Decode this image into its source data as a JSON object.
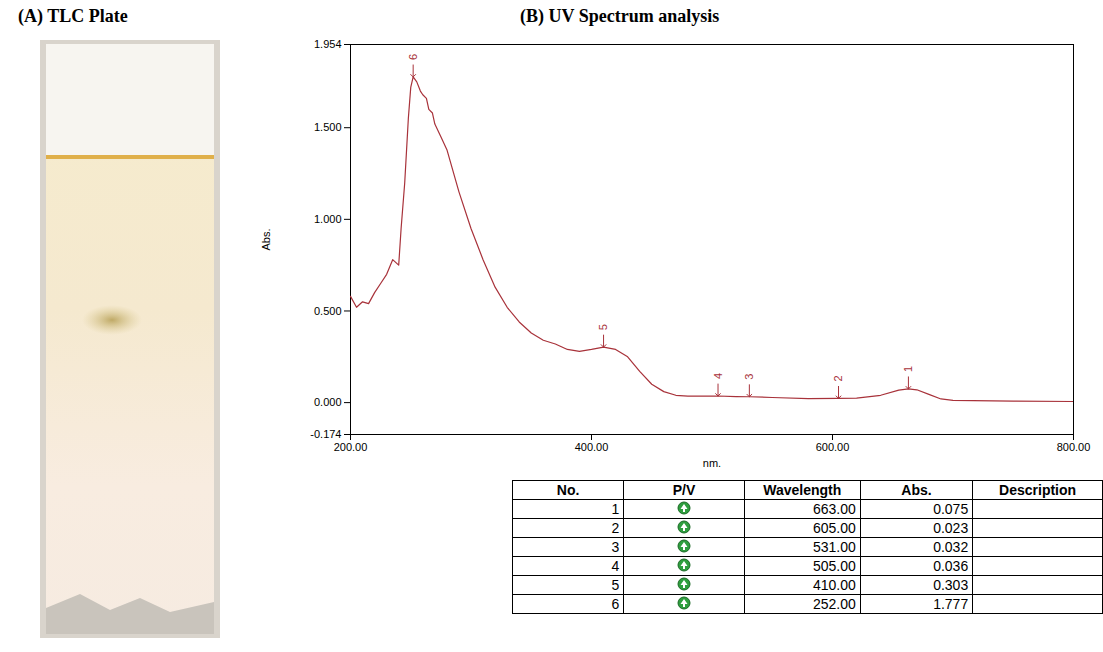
{
  "panel_a": {
    "title": "(A) TLC Plate"
  },
  "chart_data": {
    "type": "line",
    "title": "(B) UV Spectrum analysis",
    "x_label": "nm.",
    "y_label": "Abs.",
    "xlim": [
      200,
      800
    ],
    "xticks": [
      {
        "value": 200,
        "label": "200.00"
      },
      {
        "value": 400,
        "label": "400.00"
      },
      {
        "value": 600,
        "label": "600.00"
      },
      {
        "value": 800,
        "label": "800.00"
      }
    ],
    "ylim": [
      -0.174,
      1.954
    ],
    "yticks": [
      -0.174,
      {
        "value": 0,
        "label": "0.000"
      },
      {
        "value": 0.5,
        "label": "0.500"
      },
      {
        "value": 1,
        "label": "1.000"
      },
      {
        "value": 1.5,
        "label": "1.500"
      },
      1.954
    ],
    "grid": false,
    "color": "#a8323a",
    "x": [
      200,
      205,
      210,
      215,
      220,
      225,
      230,
      235,
      240,
      242,
      245,
      248,
      250,
      252,
      255,
      258,
      260,
      263,
      265,
      268,
      270,
      275,
      280,
      290,
      300,
      310,
      320,
      330,
      340,
      350,
      360,
      370,
      380,
      390,
      400,
      410,
      420,
      430,
      440,
      450,
      460,
      470,
      480,
      500,
      505,
      520,
      531,
      550,
      580,
      605,
      620,
      640,
      655,
      663,
      670,
      680,
      690,
      700,
      750,
      800
    ],
    "values": [
      0.58,
      0.52,
      0.55,
      0.54,
      0.6,
      0.65,
      0.7,
      0.78,
      0.75,
      0.95,
      1.2,
      1.55,
      1.72,
      1.777,
      1.75,
      1.7,
      1.68,
      1.66,
      1.6,
      1.58,
      1.52,
      1.45,
      1.38,
      1.15,
      0.95,
      0.78,
      0.63,
      0.52,
      0.44,
      0.38,
      0.34,
      0.32,
      0.29,
      0.28,
      0.29,
      0.303,
      0.29,
      0.25,
      0.17,
      0.1,
      0.06,
      0.04,
      0.035,
      0.035,
      0.036,
      0.033,
      0.032,
      0.028,
      0.022,
      0.023,
      0.025,
      0.04,
      0.068,
      0.075,
      0.07,
      0.045,
      0.02,
      0.012,
      0.008,
      0.006
    ],
    "peaks": [
      {
        "label": "1",
        "x": 663,
        "y": 0.075
      },
      {
        "label": "2",
        "x": 605,
        "y": 0.023
      },
      {
        "label": "3",
        "x": 531,
        "y": 0.032
      },
      {
        "label": "4",
        "x": 505,
        "y": 0.036
      },
      {
        "label": "5",
        "x": 410,
        "y": 0.303
      },
      {
        "label": "6",
        "x": 252,
        "y": 1.777
      }
    ]
  },
  "table": {
    "columns": [
      "No.",
      "P/V",
      "Wavelength",
      "Abs.",
      "Description"
    ],
    "rows": [
      {
        "no": 1,
        "wavelength": "663.00",
        "abs": "0.075"
      },
      {
        "no": 2,
        "wavelength": "605.00",
        "abs": "0.023"
      },
      {
        "no": 3,
        "wavelength": "531.00",
        "abs": "0.032"
      },
      {
        "no": 4,
        "wavelength": "505.00",
        "abs": "0.036"
      },
      {
        "no": 5,
        "wavelength": "410.00",
        "abs": "0.303"
      },
      {
        "no": 6,
        "wavelength": "252.00",
        "abs": "1.777"
      }
    ]
  }
}
